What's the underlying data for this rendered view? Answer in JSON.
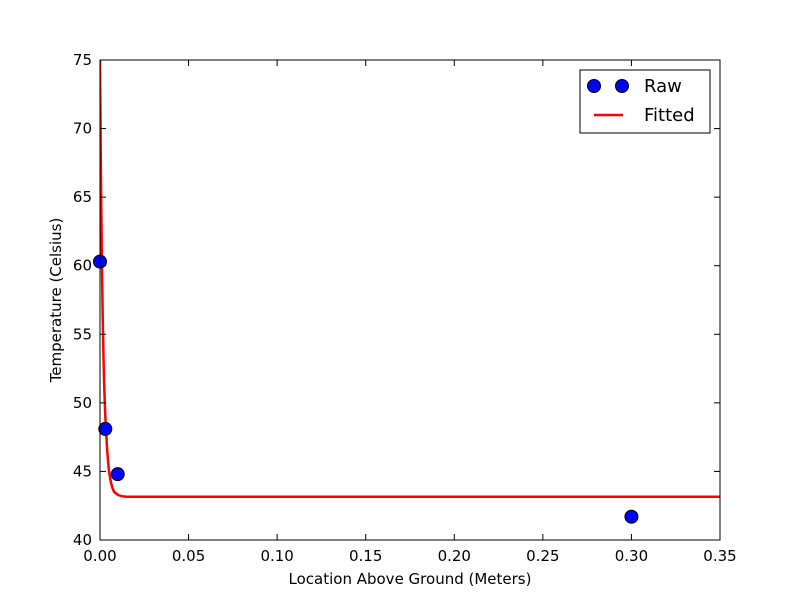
{
  "chart_data": {
    "type": "scatter",
    "title": "",
    "xlabel": "Location Above Ground (Meters)",
    "ylabel": "Temperature (Celsius)",
    "xlim": [
      0.0,
      0.35
    ],
    "ylim": [
      40,
      75
    ],
    "x_ticks": [
      "0.00",
      "0.05",
      "0.10",
      "0.15",
      "0.20",
      "0.25",
      "0.30",
      "0.35"
    ],
    "y_ticks": [
      "40",
      "45",
      "50",
      "55",
      "60",
      "65",
      "70",
      "75"
    ],
    "grid": false,
    "legend_position": "top-right",
    "series": [
      {
        "name": "Raw",
        "style": "markers",
        "color": "#0000ff",
        "x": [
          0.0,
          0.003,
          0.01,
          0.3
        ],
        "y": [
          60.3,
          48.1,
          44.8,
          41.7
        ]
      },
      {
        "name": "Fitted",
        "style": "line",
        "color": "#ff0000",
        "x": [
          0.0,
          0.0005,
          0.001,
          0.0015,
          0.002,
          0.0025,
          0.003,
          0.004,
          0.005,
          0.006,
          0.007,
          0.008,
          0.01,
          0.012,
          0.015,
          0.02,
          0.05,
          0.1,
          0.15,
          0.2,
          0.25,
          0.3,
          0.35
        ],
        "y": [
          75.0,
          67.0,
          61.0,
          56.5,
          53.2,
          50.8,
          49.0,
          46.6,
          45.1,
          44.3,
          43.8,
          43.5,
          43.3,
          43.2,
          43.15,
          43.15,
          43.15,
          43.15,
          43.15,
          43.15,
          43.15,
          43.15,
          43.15
        ]
      }
    ]
  }
}
